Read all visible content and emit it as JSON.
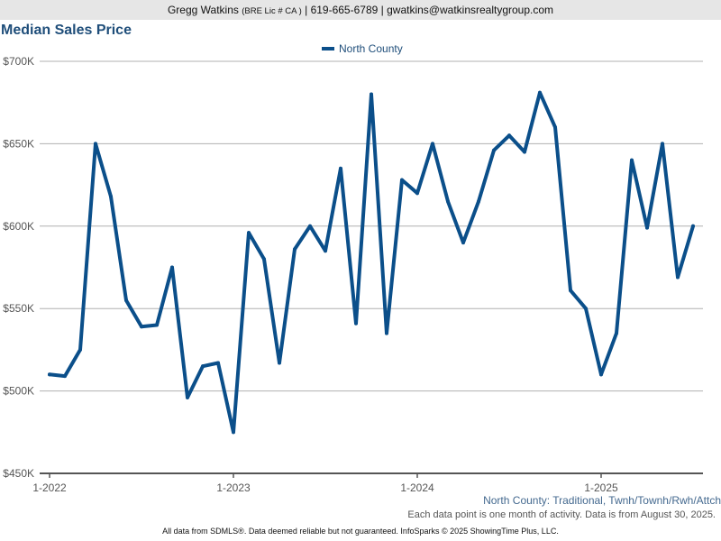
{
  "header": {
    "agent_name": "Gregg Watkins",
    "license": "(BRE Lic # CA )",
    "separator": "|",
    "phone": "619-665-6789",
    "email": "gwatkins@watkinsrealtygroup.com"
  },
  "chart_data": {
    "type": "line",
    "title": "Median Sales Price",
    "x_tick_labels": [
      "1-2022",
      "1-2023",
      "1-2024",
      "1-2025"
    ],
    "y_tick_labels": [
      "$450K",
      "$500K",
      "$550K",
      "$600K",
      "$650K",
      "$700K"
    ],
    "ylim": [
      450000,
      700000
    ],
    "y_ticks": [
      450000,
      500000,
      550000,
      600000,
      650000,
      700000
    ],
    "grid": true,
    "legend_position": "top-center",
    "x": [
      "2022-01",
      "2022-02",
      "2022-03",
      "2022-04",
      "2022-05",
      "2022-06",
      "2022-07",
      "2022-08",
      "2022-09",
      "2022-10",
      "2022-11",
      "2022-12",
      "2023-01",
      "2023-02",
      "2023-03",
      "2023-04",
      "2023-05",
      "2023-06",
      "2023-07",
      "2023-08",
      "2023-09",
      "2023-10",
      "2023-11",
      "2023-12",
      "2024-01",
      "2024-02",
      "2024-03",
      "2024-04",
      "2024-05",
      "2024-06",
      "2024-07",
      "2024-08",
      "2024-09",
      "2024-10",
      "2024-11",
      "2024-12",
      "2025-01",
      "2025-02",
      "2025-03",
      "2025-04",
      "2025-05",
      "2025-06",
      "2025-07"
    ],
    "series": [
      {
        "name": "North County",
        "color": "#0b4f8a",
        "values": [
          510000,
          509000,
          525000,
          650000,
          618000,
          555000,
          539000,
          540000,
          575000,
          496000,
          515000,
          517000,
          475000,
          596000,
          580000,
          517000,
          586000,
          600000,
          585000,
          635000,
          541000,
          680000,
          535000,
          628000,
          620000,
          650000,
          615000,
          590000,
          615000,
          646000,
          655000,
          645000,
          681000,
          660000,
          561000,
          550000,
          510000,
          535000,
          640000,
          599000,
          650000,
          569000,
          600000
        ]
      }
    ]
  },
  "subcaption": "North County: Traditional, Twnh/Townh/Rwh/Attch",
  "note": "Each data point is one month of activity. Data is from August 30, 2025.",
  "footer": "All data from SDMLS®. Data deemed reliable but not guaranteed. InfoSparks © 2025 ShowingTime Plus, LLC."
}
